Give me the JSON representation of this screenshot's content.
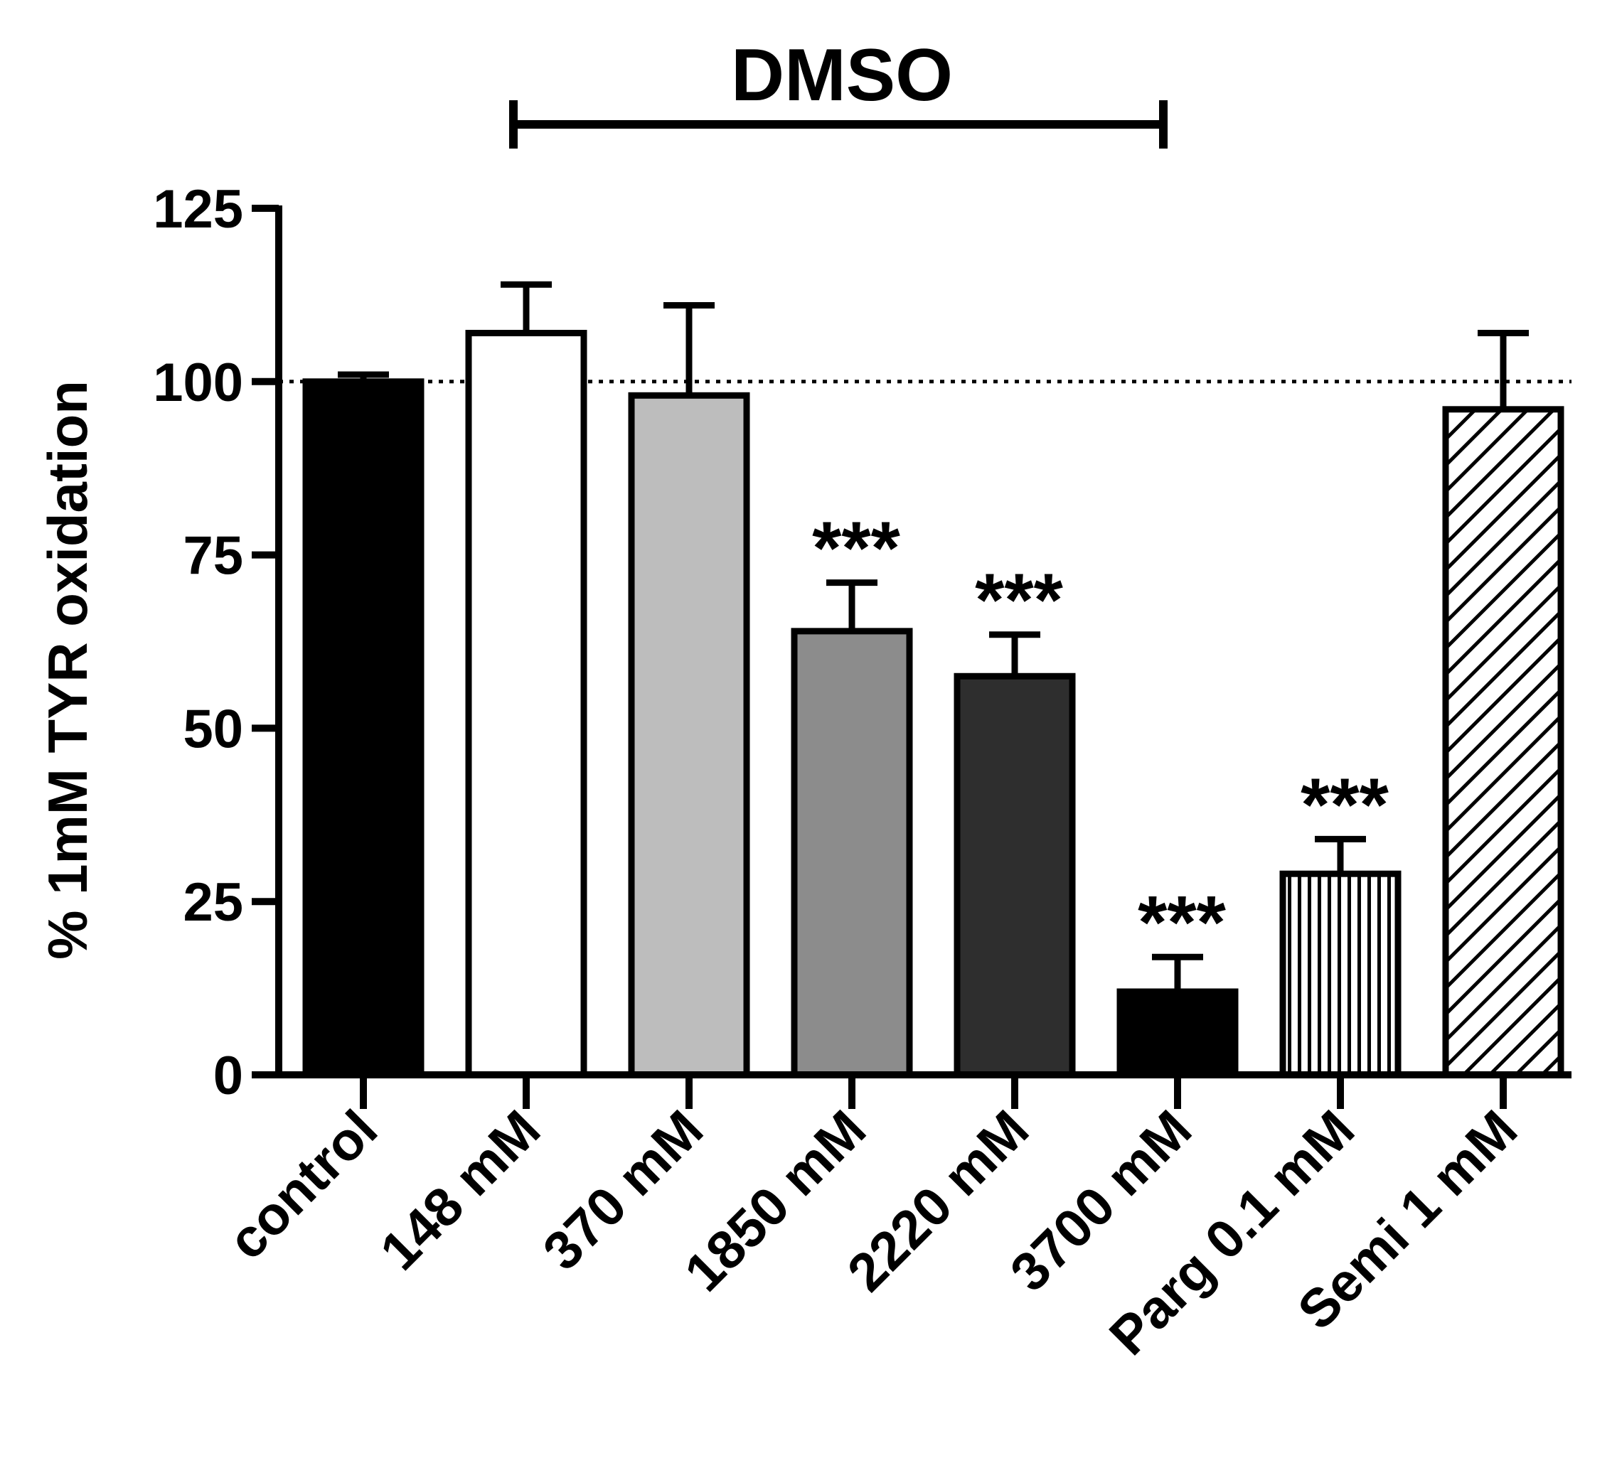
{
  "chart_data": {
    "type": "bar",
    "title": "",
    "xlabel": "",
    "ylabel": "% 1mM TYR oxidation",
    "ylim": [
      0,
      125
    ],
    "yticks": [
      "0",
      "25",
      "50",
      "75",
      "100",
      "125"
    ],
    "reference_line": {
      "value": 100,
      "style": "dotted"
    },
    "grid": false,
    "group_bracket": {
      "label": "DMSO",
      "from_category": 1,
      "to_category": 5
    },
    "categories": [
      "control",
      "148 mM",
      "370 mM",
      "1850 mM",
      "2220 mM",
      "3700 mM",
      "Parg 0.1 mM",
      "Semi 1 mM"
    ],
    "values": [
      100,
      107,
      98,
      64,
      57.5,
      12,
      29,
      96
    ],
    "errors": [
      1,
      7,
      13,
      7,
      6,
      5,
      5,
      11
    ],
    "significance": [
      "",
      "",
      "",
      "***",
      "***",
      "***",
      "***",
      ""
    ],
    "fills": [
      "#000000",
      "#ffffff",
      "#bdbdbd",
      "#8c8c8c",
      "#2e2e2e",
      "#000000",
      "vertical-stripes",
      "diagonal-hatch"
    ]
  }
}
